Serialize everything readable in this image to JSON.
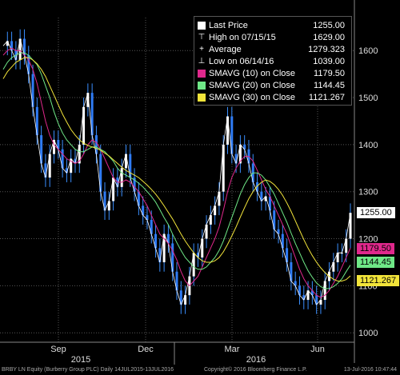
{
  "chart_data": {
    "type": "line",
    "title": "",
    "xlabel": "",
    "ylabel": "",
    "ylim": [
      980,
      1670
    ],
    "yticks": [
      1000,
      1100,
      1200,
      1300,
      1400,
      1500,
      1600
    ],
    "month_labels": [
      "Sep",
      "Dec",
      "Mar",
      "Jun"
    ],
    "year_labels": [
      "2015",
      "2016"
    ],
    "grid": true,
    "legend_placement": "top-right",
    "series": [
      {
        "name": "Last Price",
        "color": "#ffffff",
        "values": [
          1610,
          1620,
          1600,
          1580,
          1625,
          1590,
          1550,
          1480,
          1420,
          1360,
          1330,
          1380,
          1410,
          1390,
          1350,
          1340,
          1370,
          1360,
          1400,
          1480,
          1510,
          1420,
          1380,
          1300,
          1260,
          1280,
          1330,
          1310,
          1350,
          1380,
          1330,
          1300,
          1270,
          1250,
          1240,
          1210,
          1180,
          1150,
          1210,
          1190,
          1130,
          1090,
          1060,
          1080,
          1120,
          1170,
          1160,
          1200,
          1230,
          1250,
          1270,
          1300,
          1400,
          1460,
          1380,
          1360,
          1400,
          1390,
          1360,
          1320,
          1300,
          1280,
          1290,
          1260,
          1220,
          1210,
          1180,
          1150,
          1110,
          1100,
          1080,
          1070,
          1090,
          1080,
          1060,
          1070,
          1110,
          1130,
          1150,
          1170,
          1170,
          1200,
          1255
        ]
      },
      {
        "name": "SMAVG (10) on Close",
        "color": "#e0288c",
        "values": [
          1590,
          1600,
          1605,
          1600,
          1600,
          1590,
          1580,
          1560,
          1530,
          1490,
          1450,
          1420,
          1400,
          1390,
          1380,
          1370,
          1365,
          1360,
          1365,
          1380,
          1400,
          1410,
          1405,
          1390,
          1370,
          1350,
          1330,
          1320,
          1320,
          1325,
          1320,
          1310,
          1300,
          1285,
          1270,
          1250,
          1230,
          1210,
          1200,
          1190,
          1175,
          1155,
          1130,
          1110,
          1100,
          1110,
          1120,
          1140,
          1160,
          1180,
          1200,
          1225,
          1260,
          1300,
          1330,
          1350,
          1365,
          1375,
          1375,
          1365,
          1345,
          1325,
          1305,
          1290,
          1270,
          1250,
          1230,
          1210,
          1185,
          1160,
          1135,
          1115,
          1100,
          1090,
          1080,
          1075,
          1080,
          1090,
          1105,
          1120,
          1140,
          1160,
          1180
        ]
      },
      {
        "name": "SMAVG (20) on Close",
        "color": "#6fe887",
        "values": [
          1560,
          1575,
          1585,
          1590,
          1595,
          1595,
          1590,
          1580,
          1570,
          1550,
          1525,
          1500,
          1470,
          1445,
          1425,
          1410,
          1400,
          1390,
          1385,
          1385,
          1390,
          1395,
          1395,
          1390,
          1385,
          1375,
          1365,
          1350,
          1340,
          1335,
          1330,
          1325,
          1318,
          1310,
          1300,
          1290,
          1278,
          1262,
          1245,
          1230,
          1210,
          1192,
          1175,
          1160,
          1150,
          1140,
          1135,
          1135,
          1140,
          1150,
          1160,
          1175,
          1195,
          1220,
          1245,
          1270,
          1295,
          1315,
          1330,
          1340,
          1340,
          1335,
          1325,
          1310,
          1295,
          1275,
          1255,
          1235,
          1212,
          1190,
          1170,
          1150,
          1132,
          1118,
          1106,
          1098,
          1094,
          1094,
          1098,
          1105,
          1115,
          1130,
          1144
        ]
      },
      {
        "name": "SMAVG (30) on Close",
        "color": "#f2e43a",
        "values": [
          1540,
          1555,
          1565,
          1575,
          1580,
          1585,
          1585,
          1580,
          1572,
          1560,
          1545,
          1525,
          1505,
          1485,
          1465,
          1448,
          1432,
          1420,
          1410,
          1403,
          1398,
          1395,
          1392,
          1388,
          1382,
          1376,
          1368,
          1360,
          1352,
          1345,
          1340,
          1335,
          1330,
          1322,
          1314,
          1305,
          1295,
          1283,
          1270,
          1256,
          1242,
          1226,
          1210,
          1195,
          1182,
          1170,
          1160,
          1153,
          1150,
          1150,
          1153,
          1160,
          1172,
          1188,
          1206,
          1225,
          1246,
          1266,
          1285,
          1300,
          1312,
          1320,
          1325,
          1322,
          1315,
          1305,
          1292,
          1276,
          1258,
          1238,
          1218,
          1198,
          1180,
          1164,
          1150,
          1138,
          1128,
          1120,
          1114,
          1110,
          1110,
          1113,
          1121
        ]
      }
    ],
    "legend": [
      {
        "label": "Last Price",
        "value": "1255.00",
        "kind": "square",
        "color": "#ffffff"
      },
      {
        "label": "High on 07/15/15",
        "value": "1629.00",
        "kind": "high",
        "color": "#ffffff"
      },
      {
        "label": "Average",
        "value": "1279.323",
        "kind": "avg",
        "color": "#ffffff"
      },
      {
        "label": "Low on 06/14/16",
        "value": "1039.00",
        "kind": "low",
        "color": "#ffffff"
      },
      {
        "label": "SMAVG (10) on Close",
        "value": "1179.50",
        "kind": "swatch",
        "color": "#e0288c"
      },
      {
        "label": "SMAVG (20) on Close",
        "value": "1144.45",
        "kind": "swatch",
        "color": "#6fe887"
      },
      {
        "label": "SMAVG (30) on Close",
        "value": "1121.267",
        "kind": "swatch",
        "color": "#f2e43a"
      }
    ],
    "tags": [
      {
        "value": "1255.00",
        "level": 1255,
        "color": "#ffffff"
      },
      {
        "value": "1179.50",
        "level": 1179.5,
        "color": "#e0288c"
      },
      {
        "value": "1144.45",
        "level": 1144.45,
        "color": "#6fe887"
      },
      {
        "value": "1121.267",
        "level": 1121.267,
        "color": "#f2e43a"
      }
    ]
  },
  "footer": {
    "security": "BRBY LN Equity (Burberry Group PLC)  Daily 14JUL2015-13JUL2016",
    "copyright": "Copyright© 2016 Bloomberg Finance L.P.",
    "timestamp": "13-Jul-2016 10:47:44"
  }
}
